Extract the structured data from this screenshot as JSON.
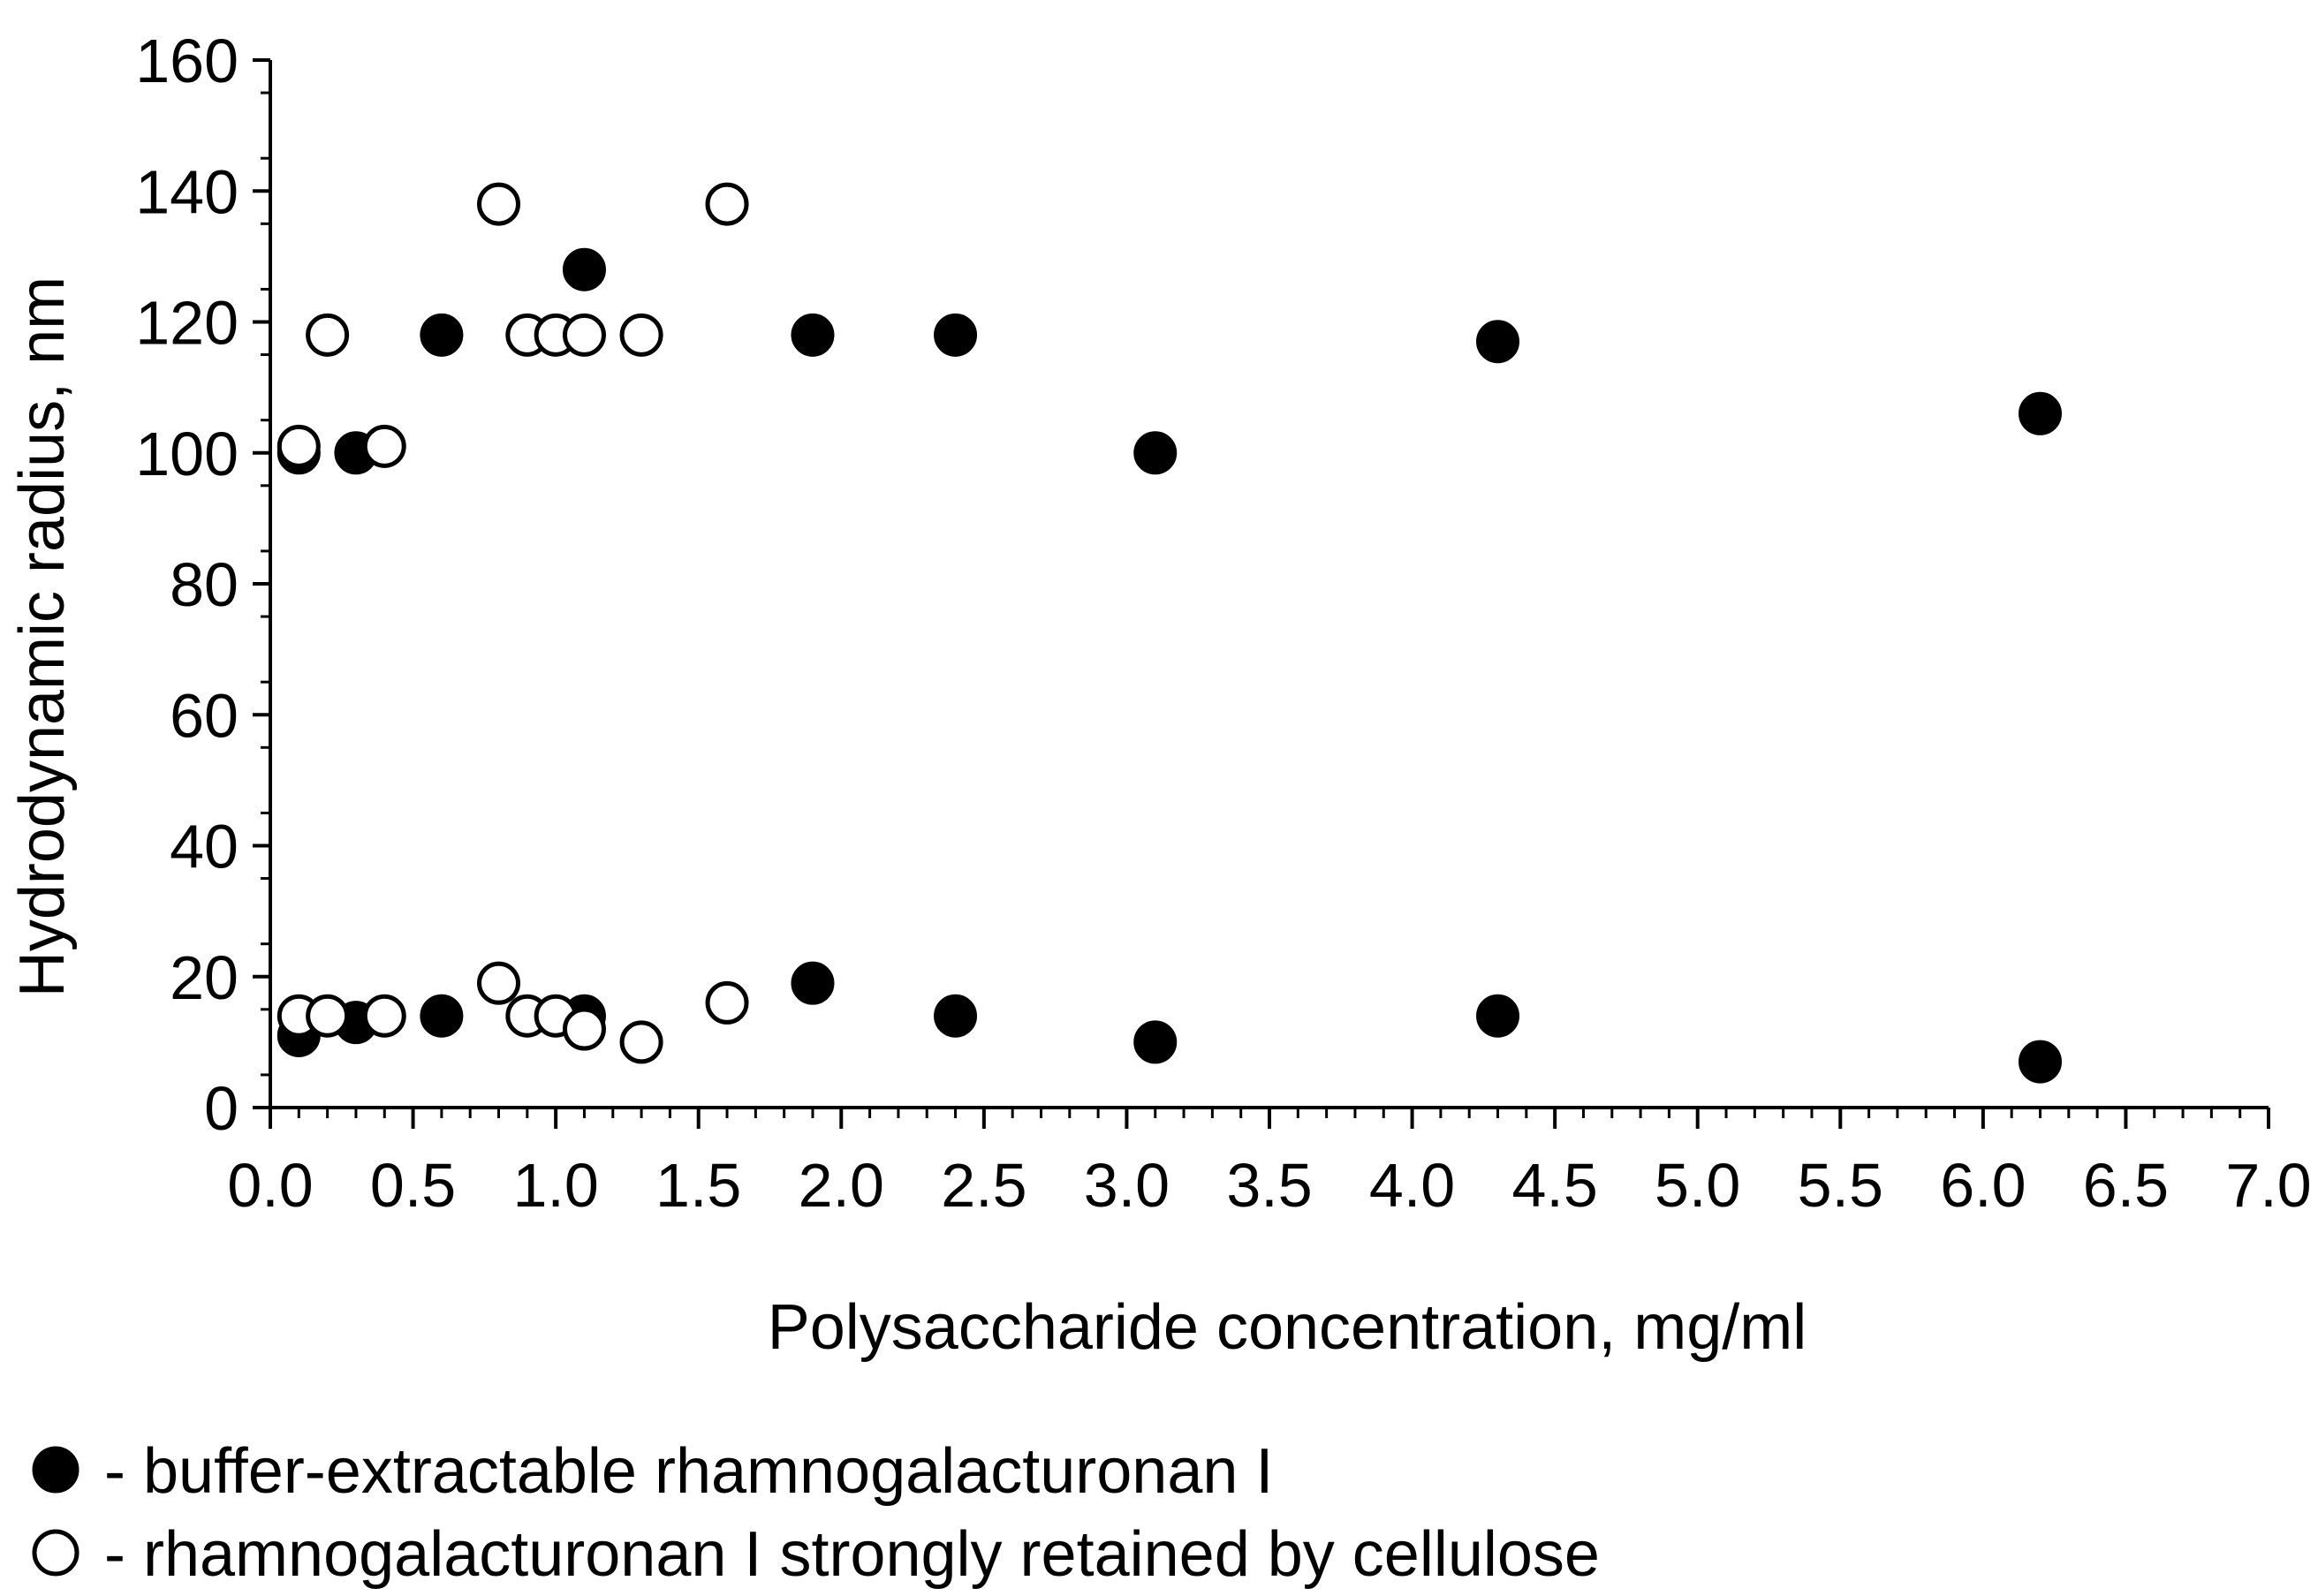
{
  "chart_data": {
    "type": "scatter",
    "title": "",
    "xlabel": "Polysaccharide concentration, mg/ml",
    "ylabel": "Hydrodynamic radius, nm",
    "xlim": [
      0,
      7
    ],
    "ylim": [
      0,
      160
    ],
    "x_ticks": [
      "0.0",
      "0.5",
      "1.0",
      "1.5",
      "2.0",
      "2.5",
      "3.0",
      "3.5",
      "4.0",
      "4.5",
      "5.0",
      "5.5",
      "6.0",
      "6.5",
      "7.0"
    ],
    "y_ticks": [
      "0",
      "20",
      "40",
      "60",
      "80",
      "100",
      "120",
      "140",
      "160"
    ],
    "grid": false,
    "legend_position": "bottom-left",
    "series": [
      {
        "name": "buffer-extractable rhamnogalacturonan I",
        "marker": "filled-circle",
        "color": "#000000",
        "points": [
          [
            0.1,
            100
          ],
          [
            0.3,
            100
          ],
          [
            0.6,
            118
          ],
          [
            1.1,
            128
          ],
          [
            1.9,
            118
          ],
          [
            2.4,
            118
          ],
          [
            3.1,
            100
          ],
          [
            4.3,
            117
          ],
          [
            6.2,
            106
          ],
          [
            0.1,
            11
          ],
          [
            0.3,
            13
          ],
          [
            0.6,
            14
          ],
          [
            1.1,
            14
          ],
          [
            1.9,
            19
          ],
          [
            2.4,
            14
          ],
          [
            3.1,
            10
          ],
          [
            4.3,
            14
          ],
          [
            6.2,
            7
          ]
        ]
      },
      {
        "name": "rhamnogalacturonan I strongly retained by cellulose",
        "marker": "open-circle",
        "color": "#000000",
        "points": [
          [
            0.1,
            101
          ],
          [
            0.2,
            118
          ],
          [
            0.4,
            101
          ],
          [
            0.8,
            138
          ],
          [
            0.9,
            118
          ],
          [
            1.0,
            118
          ],
          [
            1.1,
            118
          ],
          [
            1.3,
            118
          ],
          [
            1.6,
            138
          ],
          [
            0.1,
            14
          ],
          [
            0.2,
            14
          ],
          [
            0.4,
            14
          ],
          [
            0.8,
            19
          ],
          [
            0.9,
            14
          ],
          [
            1.0,
            14
          ],
          [
            1.1,
            12
          ],
          [
            1.3,
            10
          ],
          [
            1.6,
            16
          ]
        ]
      }
    ]
  },
  "legend": {
    "filled_label": "- buffer-extractable rhamnogalacturonan I",
    "open_label": "- rhamnogalacturonan I strongly retained by cellulose"
  }
}
